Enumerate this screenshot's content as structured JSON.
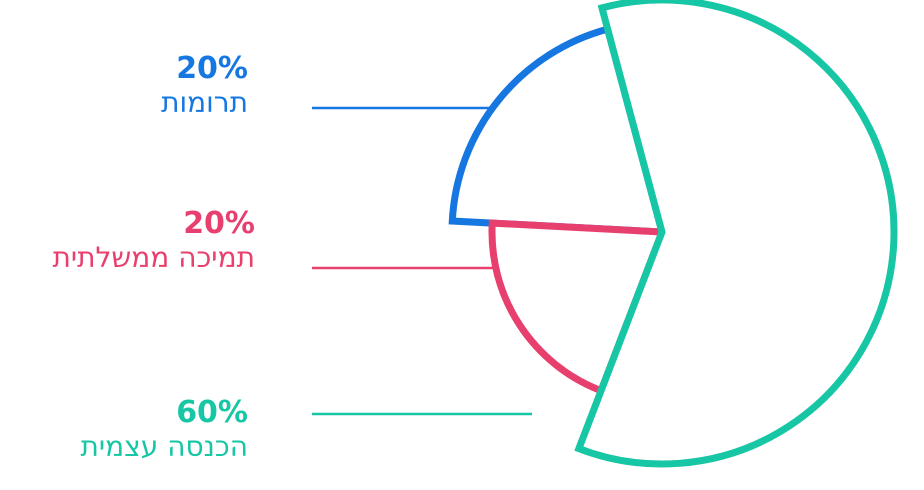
{
  "chart_data": {
    "type": "pie",
    "title": "",
    "slices": [
      {
        "label": "הכנסה עצמית",
        "percent_label": "60%",
        "value": 60,
        "color": "#16c6a4"
      },
      {
        "label": "תמיכה ממשלתית",
        "percent_label": "20%",
        "value": 20,
        "color": "#e8406e"
      },
      {
        "label": "תרומות",
        "percent_label": "20%",
        "value": 20,
        "color": "#1677e0"
      }
    ]
  }
}
